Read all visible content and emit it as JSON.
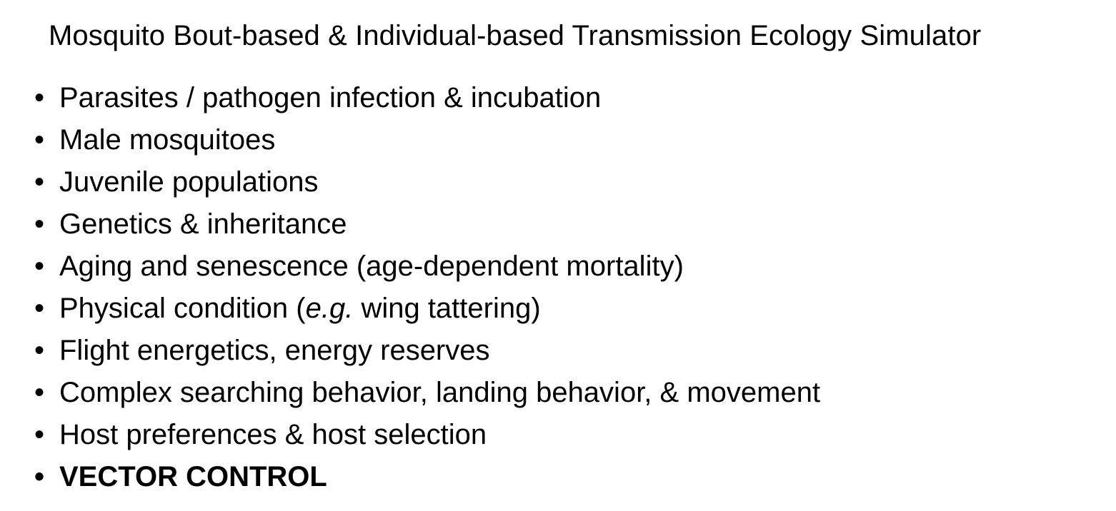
{
  "slide": {
    "title": "Mosquito Bout-based & Individual-based Transmission Ecology Simulator",
    "bullet_symbol": "•",
    "items": [
      {
        "text": "Parasites / pathogen infection & incubation"
      },
      {
        "text": "Male mosquitoes"
      },
      {
        "text": "Juvenile populations"
      },
      {
        "text": "Genetics & inheritance"
      },
      {
        "text": "Aging and senescence (age-dependent mortality)"
      },
      {
        "prefix": "Physical condition (",
        "emphasis": "e.g.",
        "suffix": " wing tattering)"
      },
      {
        "text": "Flight energetics, energy reserves"
      },
      {
        "text": "Complex searching behavior, landing behavior, & movement"
      },
      {
        "text": "Host preferences & host selection"
      },
      {
        "text": "VECTOR CONTROL"
      }
    ]
  }
}
